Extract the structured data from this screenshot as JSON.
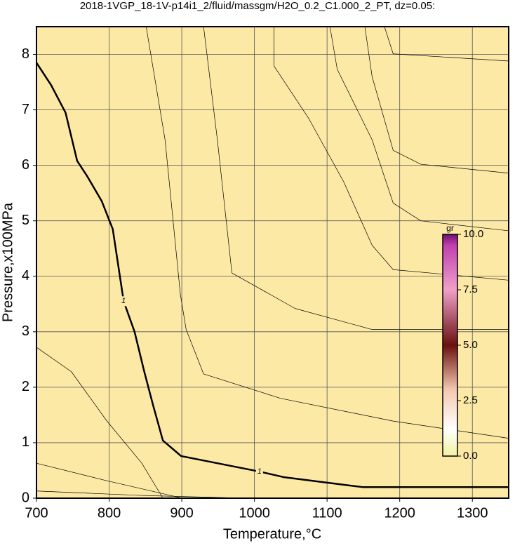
{
  "chart_data": {
    "type": "contour",
    "title": "2018-1VGP_18-1V-p14i1_2/fluid/massgm/H2O_0.2_C1.000_2_PT, dz=0.05:",
    "xlabel": "Temperature,°C",
    "ylabel": "Pressure,x100MPa",
    "xlim": [
      700,
      1350
    ],
    "ylim": [
      0,
      8.5
    ],
    "xticks": [
      700,
      800,
      900,
      1000,
      1100,
      1200,
      1300
    ],
    "yticks": [
      0,
      1,
      2,
      3,
      4,
      5,
      6,
      7,
      8
    ],
    "grid": true,
    "contours": [
      {
        "label": "1",
        "bold": true,
        "x": [
          700,
          720,
          740,
          756,
          770,
          790,
          805,
          820,
          835,
          848,
          860,
          874,
          899,
          1007,
          1040,
          1100,
          1149,
          1350
        ],
        "y": [
          7.85,
          7.45,
          6.95,
          6.08,
          5.8,
          5.35,
          4.85,
          3.55,
          3.0,
          2.3,
          1.7,
          1.04,
          0.76,
          0.48,
          0.38,
          0.28,
          0.2,
          0.2
        ],
        "label_at": [
          [
            820,
            3.55
          ],
          [
            1007,
            0.48
          ]
        ]
      },
      {
        "x": [
          851,
          877,
          898,
          906,
          930,
          1036,
          1191,
          1350
        ],
        "y": [
          8.5,
          6.46,
          3.68,
          3.04,
          2.24,
          1.8,
          1.39,
          1.08
        ]
      },
      {
        "x": [
          930,
          949,
          969,
          1056,
          1162,
          1350
        ],
        "y": [
          8.5,
          6.46,
          4.06,
          3.42,
          3.04,
          3.04
        ]
      },
      {
        "x": [
          1027,
          1027,
          1075,
          1123,
          1162,
          1191,
          1350
        ],
        "y": [
          8.5,
          7.79,
          6.84,
          5.7,
          4.56,
          4.12,
          3.93
        ]
      },
      {
        "x": [
          1104,
          1114,
          1162,
          1191,
          1229,
          1350
        ],
        "y": [
          8.5,
          7.73,
          6.46,
          5.32,
          5.0,
          4.82
        ]
      },
      {
        "x": [
          1152,
          1162,
          1191,
          1229,
          1350
        ],
        "y": [
          8.5,
          7.6,
          6.27,
          6.02,
          5.86
        ]
      },
      {
        "x": [
          1179,
          1191,
          1350
        ],
        "y": [
          8.5,
          8.01,
          7.88
        ]
      },
      {
        "x": [
          700,
          748,
          797,
          845,
          874
        ],
        "y": [
          2.72,
          2.28,
          1.39,
          0.63,
          0
        ]
      },
      {
        "x": [
          700,
          795,
          901
        ],
        "y": [
          0.63,
          0.32,
          0
        ]
      },
      {
        "x": [
          700,
          843,
          988
        ],
        "y": [
          0.13,
          0.05,
          0
        ]
      }
    ],
    "colorbar": {
      "label": "gr",
      "lim": [
        0,
        10
      ],
      "ticks": [
        {
          "value": 0,
          "label": "0.0"
        },
        {
          "value": 2.5,
          "label": "2.5"
        },
        {
          "value": 5,
          "label": "5.0"
        },
        {
          "value": 7.5,
          "label": "7.5"
        },
        {
          "value": 10,
          "label": "10.0"
        }
      ]
    }
  }
}
